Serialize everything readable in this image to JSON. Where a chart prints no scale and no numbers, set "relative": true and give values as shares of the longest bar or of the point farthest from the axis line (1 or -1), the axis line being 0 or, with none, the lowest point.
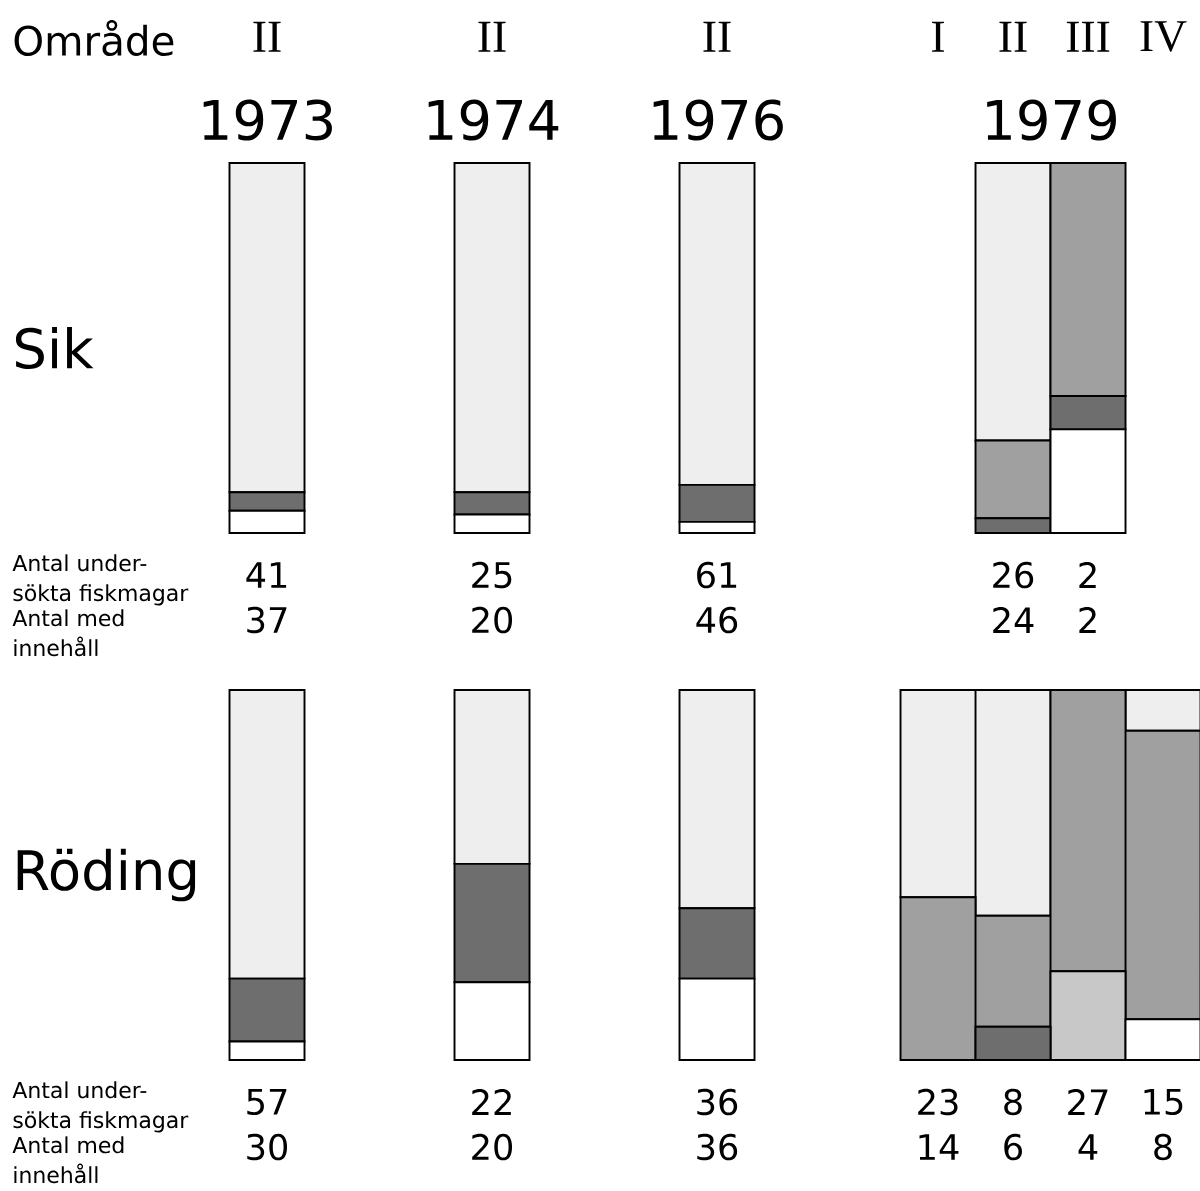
{
  "chart_data": [
    {
      "type": "bar",
      "stacked": true,
      "relative": true,
      "xlabel": "Område",
      "ylabel": "Sik",
      "categories": [
        "II",
        "II",
        "II"
      ],
      "series": [
        {
          "color": "#ffffff",
          "values": [
            0.06,
            0.05,
            0.03
          ]
        },
        {
          "color": "#6e6e6e",
          "values": [
            0.05,
            0.06,
            0.1
          ]
        },
        {
          "color": "#eeeeee",
          "values": [
            0.89,
            0.89,
            0.87
          ]
        }
      ],
      "annotations": [
        "Antal under-sökta fiskmagar",
        "Antal med innehåll",
        "41",
        "25",
        "61",
        "37",
        "20",
        "46",
        "1973",
        "1974",
        "1976"
      ]
    },
    {
      "type": "bar",
      "stacked": true,
      "relative": true,
      "categories": [
        "I",
        "II",
        "III",
        "IV"
      ],
      "series": [
        {
          "color": "#ffffff",
          "values": [
            null,
            0,
            0.28,
            null
          ]
        },
        {
          "color": "#6e6e6e",
          "values": [
            null,
            0.04,
            0.09,
            null
          ]
        },
        {
          "color": "#a0a0a0",
          "values": [
            null,
            0.21,
            0.63,
            null
          ]
        },
        {
          "color": "#eeeeee",
          "values": [
            null,
            0.75,
            0,
            null
          ]
        }
      ],
      "annotations": [
        "26",
        "2",
        "24",
        "2",
        "1979"
      ]
    },
    {
      "type": "bar",
      "stacked": true,
      "relative": true,
      "ylabel": "Röding",
      "categories": [
        null,
        null,
        null
      ],
      "series": [
        {
          "color": "#ffffff",
          "values": [
            0.05,
            0.21,
            0.22
          ]
        },
        {
          "color": "#6e6e6e",
          "values": [
            0.17,
            0.32,
            0.19
          ]
        },
        {
          "color": "#eeeeee",
          "values": [
            0.78,
            0.47,
            0.59
          ]
        }
      ],
      "annotations": [
        "Antal under-sökta fiskmagar",
        "Antal med innehåll",
        "57",
        "22",
        "36",
        "30",
        "20",
        "36"
      ]
    },
    {
      "type": "bar",
      "stacked": true,
      "relative": true,
      "categories": [
        null,
        null,
        null,
        null
      ],
      "series": [
        {
          "color": "#ffffff",
          "values": [
            0,
            0,
            0,
            0.11
          ]
        },
        {
          "color": "#6e6e6e",
          "values": [
            0,
            0.09,
            0,
            0
          ]
        },
        {
          "color": "#c8c8c8",
          "values": [
            0,
            0,
            0.24,
            0
          ]
        },
        {
          "color": "#a0a0a0",
          "values": [
            0.44,
            0.3,
            0.76,
            0.78
          ]
        },
        {
          "color": "#eeeeee",
          "values": [
            0.56,
            0.61,
            0,
            0.11
          ]
        }
      ],
      "annotations": [
        "23",
        "8",
        "27",
        "15",
        "14",
        "6",
        "4",
        "8"
      ]
    }
  ]
}
